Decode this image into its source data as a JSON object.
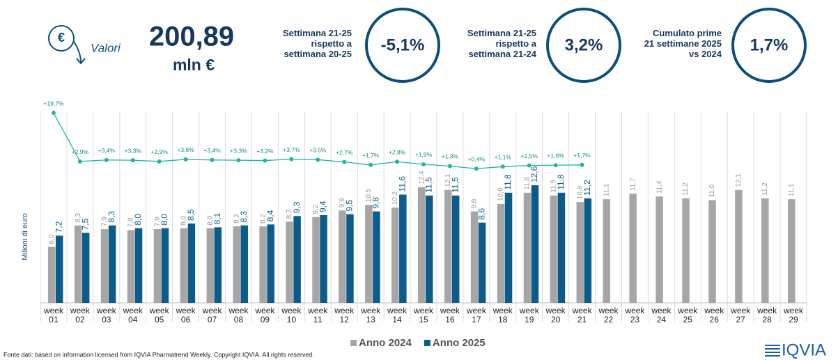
{
  "header": {
    "kpi_label": "Valori",
    "kpi_value": "200,89",
    "kpi_unit": "mln €",
    "comparisons": [
      {
        "label": "Settimana 21-25 rispetto a settimana 20-25",
        "value": "-5,1%"
      },
      {
        "label": "Settimana 21-25 rispetto a settimana 21-24",
        "value": "3,2%"
      },
      {
        "label": "Cumulato prime 21 settimane 2025 vs 2024",
        "value": "1,7%"
      }
    ]
  },
  "chart_data": {
    "type": "bar",
    "y_label": "Milioni di euro",
    "categories": [
      "week 01",
      "week 02",
      "week 03",
      "week 04",
      "week 05",
      "week 06",
      "week 07",
      "week 08",
      "week 09",
      "week 10",
      "week 11",
      "week 12",
      "week 13",
      "week 14",
      "week 15",
      "week 16",
      "week 17",
      "week 18",
      "week 19",
      "week 20",
      "week 21",
      "week 22",
      "week 23",
      "week 24",
      "week 25",
      "week 26",
      "week 27",
      "week 28",
      "week 29"
    ],
    "series": [
      {
        "name": "Anno 2024",
        "color": "#a6a6a6",
        "values": [
          6.0,
          8.3,
          7.9,
          7.8,
          7.9,
          8.0,
          8.0,
          8.2,
          8.2,
          8.7,
          9.2,
          9.9,
          10.5,
          10.2,
          12.4,
          12.1,
          9.8,
          10.6,
          11.8,
          11.5,
          10.8,
          11.1,
          11.7,
          11.4,
          11.2,
          11.0,
          12.1,
          11.2,
          11.1
        ],
        "value_labels": [
          "6,0",
          "8,3",
          "7,9",
          "7,8",
          "7,9",
          "8,0",
          "8,0",
          "8,2",
          "8,2",
          "8,7",
          "9,2",
          "9,9",
          "10,5",
          "10,2",
          "12,4",
          "12,1",
          "9,8",
          "10,6",
          "11,8",
          "11,5",
          "10,8",
          "11,1",
          "11,7",
          "11,4",
          "11,2",
          "11,0",
          "12,1",
          "11,2",
          "11,1"
        ]
      },
      {
        "name": "Anno 2025",
        "color": "#0b5c8a",
        "values": [
          7.2,
          7.5,
          8.3,
          8.0,
          8.0,
          8.5,
          8.1,
          8.3,
          8.4,
          9.3,
          9.4,
          9.5,
          9.8,
          11.6,
          11.5,
          11.5,
          8.6,
          11.8,
          12.6,
          11.8,
          11.2,
          null,
          null,
          null,
          null,
          null,
          null,
          null,
          null
        ],
        "value_labels": [
          "7,2",
          "7,5",
          "8,3",
          "8,0",
          "8,0",
          "8,5",
          "8,1",
          "8,3",
          "8,4",
          "9,3",
          "9,4",
          "9,5",
          "9,8",
          "11,6",
          "11,5",
          "11,5",
          "8,6",
          "11,8",
          "12,6",
          "11,8",
          "11,2",
          null,
          null,
          null,
          null,
          null,
          null,
          null,
          null
        ]
      }
    ],
    "growth": {
      "type": "line",
      "axis": "y2",
      "color": "#1fb5a5",
      "values": [
        19.7,
        2.9,
        3.4,
        3.3,
        2.9,
        3.6,
        3.4,
        3.3,
        3.2,
        3.7,
        3.5,
        2.7,
        1.7,
        2.8,
        1.9,
        1.3,
        0.4,
        1.1,
        1.5,
        1.6,
        1.7,
        null,
        null,
        null,
        null,
        null,
        null,
        null,
        null
      ],
      "value_labels": [
        "+19,7%",
        "+2,9%",
        "+3,4%",
        "+3,3%",
        "+2,9%",
        "+3,6%",
        "+3,4%",
        "+3,3%",
        "+3,2%",
        "+3,7%",
        "+3,5%",
        "+2,7%",
        "+1,7%",
        "+2,8%",
        "+1,9%",
        "+1,3%",
        "+0,4%",
        "+1,1%",
        "+1,5%",
        "+1,6%",
        "+1,7%",
        null,
        null,
        null,
        null,
        null,
        null,
        null,
        null
      ]
    },
    "ylim": [
      0,
      22
    ],
    "y2lim": [
      -46,
      25
    ]
  },
  "footer": "Fonte dati: based on information licensed from IQVIA Pharmatrend Weekly. Copyright IQVIA. All rights reserved.",
  "logo": "IQVIA"
}
